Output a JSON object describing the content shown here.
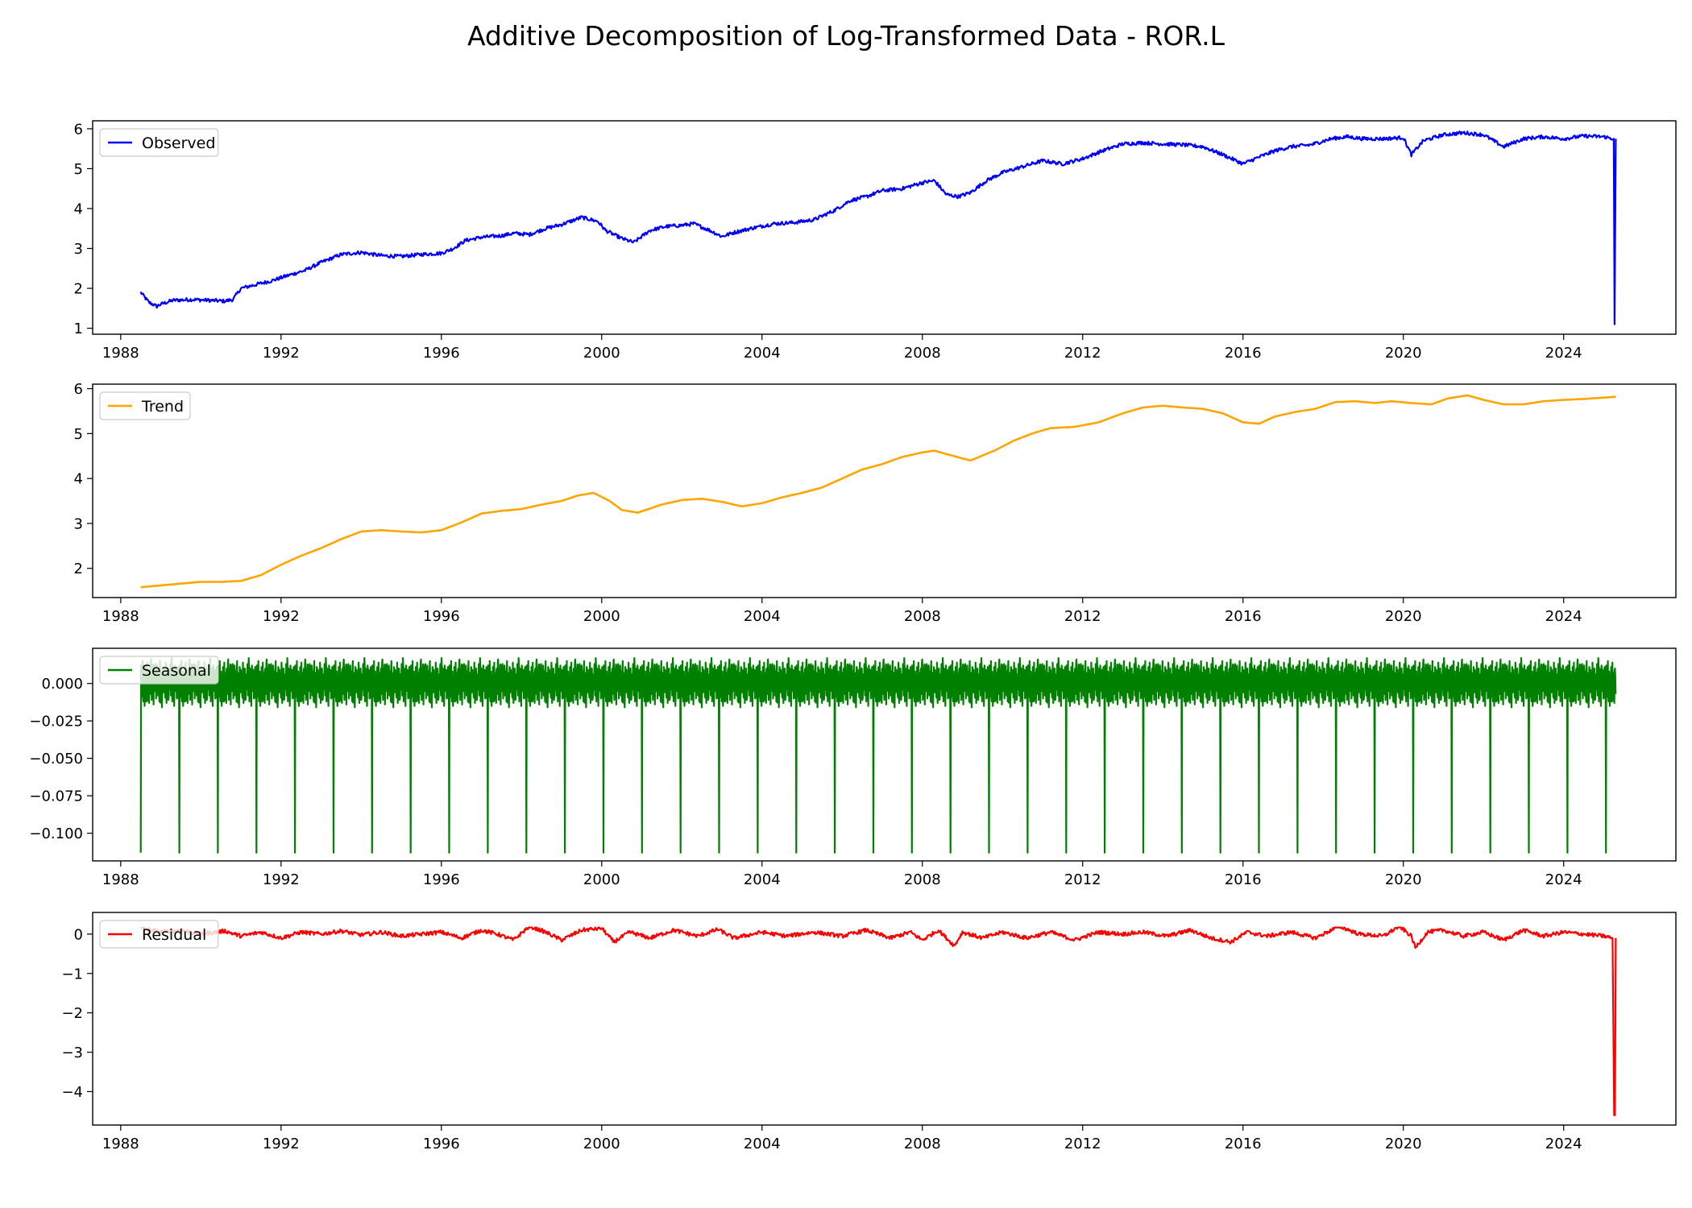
{
  "chart_data": [
    {
      "type": "line",
      "panel": "observed",
      "title": "Additive Decomposition of Log-Transformed Data - ROR.L",
      "color": "#0000ff",
      "series": [
        {
          "name": "Observed",
          "x": [
            1988.5,
            1988.7,
            1988.9,
            1989.0,
            1989.3,
            1989.8,
            1990.2,
            1990.6,
            1990.8,
            1991.0,
            1991.4,
            1991.8,
            1992.1,
            1992.6,
            1993.0,
            1993.5,
            1994.0,
            1994.5,
            1995.0,
            1995.5,
            1996.0,
            1996.3,
            1996.6,
            1997.0,
            1997.5,
            1997.8,
            1998.2,
            1998.6,
            1999.0,
            1999.5,
            1999.9,
            2000.1,
            2000.5,
            2000.8,
            2001.2,
            2001.6,
            2002.0,
            2002.3,
            2002.7,
            2003.0,
            2003.3,
            2003.8,
            2004.3,
            2004.8,
            2005.3,
            2005.8,
            2006.2,
            2006.6,
            2007.0,
            2007.5,
            2008.0,
            2008.3,
            2008.6,
            2008.9,
            2009.2,
            2009.6,
            2010.0,
            2010.5,
            2011.0,
            2011.5,
            2012.0,
            2012.5,
            2013.0,
            2013.5,
            2014.0,
            2014.5,
            2015.0,
            2015.5,
            2016.0,
            2016.3,
            2016.8,
            2017.2,
            2017.7,
            2018.2,
            2018.6,
            2019.0,
            2019.5,
            2020.0,
            2020.2,
            2020.5,
            2021.0,
            2021.5,
            2022.0,
            2022.5,
            2023.0,
            2023.5,
            2024.0,
            2024.5,
            2025.0,
            2025.25,
            2025.27,
            2025.3
          ],
          "values": [
            1.9,
            1.65,
            1.55,
            1.6,
            1.7,
            1.72,
            1.7,
            1.68,
            1.72,
            2.0,
            2.1,
            2.2,
            2.3,
            2.45,
            2.65,
            2.85,
            2.9,
            2.82,
            2.8,
            2.85,
            2.88,
            3.0,
            3.2,
            3.28,
            3.32,
            3.38,
            3.35,
            3.5,
            3.6,
            3.78,
            3.68,
            3.45,
            3.25,
            3.15,
            3.45,
            3.55,
            3.58,
            3.62,
            3.45,
            3.3,
            3.4,
            3.52,
            3.62,
            3.65,
            3.72,
            3.95,
            4.2,
            4.3,
            4.45,
            4.5,
            4.65,
            4.7,
            4.35,
            4.3,
            4.4,
            4.7,
            4.9,
            5.05,
            5.2,
            5.12,
            5.25,
            5.45,
            5.62,
            5.65,
            5.62,
            5.6,
            5.55,
            5.35,
            5.12,
            5.25,
            5.45,
            5.55,
            5.6,
            5.75,
            5.8,
            5.75,
            5.75,
            5.78,
            5.35,
            5.7,
            5.85,
            5.9,
            5.85,
            5.55,
            5.75,
            5.8,
            5.75,
            5.82,
            5.8,
            5.75,
            1.1,
            5.75
          ]
        }
      ],
      "xlim": [
        1987.3,
        2026.8
      ],
      "ylim": [
        0.85,
        6.2
      ],
      "yticks": [
        1,
        2,
        3,
        4,
        5,
        6
      ],
      "ytick_labels": [
        "1",
        "2",
        "3",
        "4",
        "5",
        "6"
      ],
      "xticks": [
        1988,
        1992,
        1996,
        2000,
        2004,
        2008,
        2012,
        2016,
        2020,
        2024
      ],
      "xtick_labels": [
        "1988",
        "1992",
        "1996",
        "2000",
        "2004",
        "2008",
        "2012",
        "2016",
        "2020",
        "2024"
      ],
      "legend": "top-left",
      "grid": false
    },
    {
      "type": "line",
      "panel": "trend",
      "color": "#ffa500",
      "series": [
        {
          "name": "Trend",
          "x": [
            1988.5,
            1989.0,
            1989.5,
            1990.0,
            1990.5,
            1991.0,
            1991.5,
            1992.0,
            1992.5,
            1993.0,
            1993.5,
            1994.0,
            1994.5,
            1995.0,
            1995.5,
            1996.0,
            1996.5,
            1997.0,
            1997.5,
            1998.0,
            1998.5,
            1999.0,
            1999.4,
            1999.8,
            2000.2,
            2000.5,
            2000.9,
            2001.5,
            2002.0,
            2002.5,
            2003.0,
            2003.5,
            2004.0,
            2004.5,
            2005.0,
            2005.5,
            2006.0,
            2006.5,
            2007.0,
            2007.5,
            2008.0,
            2008.3,
            2008.7,
            2009.2,
            2009.8,
            2010.3,
            2010.8,
            2011.2,
            2011.8,
            2012.4,
            2013.0,
            2013.5,
            2014.0,
            2014.5,
            2015.0,
            2015.5,
            2016.0,
            2016.4,
            2016.8,
            2017.3,
            2017.8,
            2018.3,
            2018.8,
            2019.3,
            2019.7,
            2020.2,
            2020.7,
            2021.1,
            2021.6,
            2022.0,
            2022.5,
            2023.0,
            2023.5,
            2024.0,
            2024.5,
            2025.0,
            2025.3
          ],
          "values": [
            1.58,
            1.62,
            1.66,
            1.7,
            1.7,
            1.72,
            1.85,
            2.08,
            2.28,
            2.45,
            2.65,
            2.82,
            2.85,
            2.82,
            2.8,
            2.85,
            3.02,
            3.22,
            3.28,
            3.32,
            3.42,
            3.5,
            3.62,
            3.68,
            3.5,
            3.3,
            3.24,
            3.42,
            3.52,
            3.55,
            3.48,
            3.38,
            3.45,
            3.58,
            3.68,
            3.8,
            4.0,
            4.2,
            4.32,
            4.48,
            4.58,
            4.62,
            4.52,
            4.4,
            4.62,
            4.85,
            5.02,
            5.12,
            5.15,
            5.25,
            5.45,
            5.58,
            5.62,
            5.58,
            5.55,
            5.45,
            5.25,
            5.22,
            5.38,
            5.48,
            5.55,
            5.7,
            5.72,
            5.68,
            5.72,
            5.68,
            5.65,
            5.78,
            5.85,
            5.75,
            5.65,
            5.65,
            5.72,
            5.75,
            5.77,
            5.8,
            5.82
          ]
        }
      ],
      "xlim": [
        1987.3,
        2026.8
      ],
      "ylim": [
        1.35,
        6.1
      ],
      "yticks": [
        2,
        3,
        4,
        5,
        6
      ],
      "ytick_labels": [
        "2",
        "3",
        "4",
        "5",
        "6"
      ],
      "xticks": [
        1988,
        1992,
        1996,
        2000,
        2004,
        2008,
        2012,
        2016,
        2020,
        2024
      ],
      "xtick_labels": [
        "1988",
        "1992",
        "1996",
        "2000",
        "2004",
        "2008",
        "2012",
        "2016",
        "2020",
        "2024"
      ],
      "legend": "top-left",
      "grid": false
    },
    {
      "type": "line",
      "panel": "seasonal",
      "color": "#008000",
      "series": [
        {
          "name": "Seasonal",
          "period_years": 0.962,
          "start": 1988.5,
          "end": 2025.3,
          "spike_min": -0.113,
          "range_max": 0.017,
          "range_min": -0.016,
          "cycle_values": [
            0.0,
            0.012,
            -0.006,
            0.015,
            -0.012,
            0.008,
            -0.015,
            0.005,
            0.011,
            -0.009,
            0.014,
            -0.004,
            0.007,
            -0.013,
            0.01,
            -0.007,
            0.016,
            -0.011,
            0.003,
            0.009,
            -0.014,
            0.006,
            -0.005,
            0.013,
            -0.01,
            0.004,
            0.012,
            -0.008,
            0.008,
            -0.012,
            0.015,
            -0.003,
            0.007,
            -0.016,
            0.011,
            -0.006,
            0.009,
            0.002,
            -0.009,
            0.014,
            -0.013,
            0.005,
            0.01,
            -0.011,
            0.006,
            -0.004,
            0.013,
            -0.008,
            0.017,
            -0.012,
            0.004,
            0.008,
            -0.015,
            0.012,
            -0.005,
            0.009,
            -0.01,
            0.003,
            0.011,
            -0.007
          ]
        }
      ],
      "xlim": [
        1987.3,
        2026.8
      ],
      "ylim": [
        -0.1185,
        0.0235
      ],
      "yticks": [
        0.0,
        -0.025,
        -0.05,
        -0.075,
        -0.1
      ],
      "ytick_labels": [
        "0.000",
        "−0.025",
        "−0.050",
        "−0.075",
        "−0.100"
      ],
      "xticks": [
        1988,
        1992,
        1996,
        2000,
        2004,
        2008,
        2012,
        2016,
        2020,
        2024
      ],
      "xtick_labels": [
        "1988",
        "1992",
        "1996",
        "2000",
        "2004",
        "2008",
        "2012",
        "2016",
        "2020",
        "2024"
      ],
      "legend": "top-left",
      "grid": false
    },
    {
      "type": "line",
      "panel": "residual",
      "color": "#ff0000",
      "series": [
        {
          "name": "Residual",
          "x": [
            1988.5,
            1989.0,
            1989.5,
            1990.0,
            1990.6,
            1991.0,
            1991.5,
            1992.0,
            1992.5,
            1993.0,
            1993.5,
            1994.0,
            1994.5,
            1995.0,
            1995.5,
            1996.0,
            1996.5,
            1997.0,
            1997.4,
            1997.8,
            1998.2,
            1998.6,
            1999.0,
            1999.5,
            2000.0,
            2000.3,
            2000.7,
            2001.2,
            2001.8,
            2002.4,
            2002.9,
            2003.3,
            2004.0,
            2004.6,
            2005.3,
            2006.0,
            2006.6,
            2007.2,
            2007.7,
            2008.0,
            2008.4,
            2008.8,
            2009.0,
            2009.5,
            2010.0,
            2010.6,
            2011.2,
            2011.8,
            2012.4,
            2013.0,
            2013.5,
            2014.1,
            2014.7,
            2015.2,
            2015.7,
            2016.1,
            2016.6,
            2017.2,
            2017.8,
            2018.4,
            2018.9,
            2019.5,
            2019.9,
            2020.2,
            2020.3,
            2020.6,
            2021.0,
            2021.5,
            2022.0,
            2022.5,
            2023.0,
            2023.5,
            2024.0,
            2024.5,
            2025.0,
            2025.22,
            2025.26,
            2025.28,
            2025.3
          ],
          "values": [
            0.15,
            0.05,
            0.1,
            0.0,
            0.08,
            -0.05,
            0.05,
            -0.1,
            0.05,
            0.0,
            0.08,
            -0.02,
            0.05,
            -0.05,
            0.0,
            0.05,
            -0.1,
            0.1,
            0.0,
            -0.15,
            0.2,
            0.05,
            -0.15,
            0.1,
            0.15,
            -0.2,
            0.05,
            -0.1,
            0.1,
            -0.05,
            0.12,
            -0.1,
            0.05,
            -0.05,
            0.05,
            -0.05,
            0.1,
            -0.1,
            0.05,
            -0.15,
            0.1,
            -0.3,
            0.05,
            -0.1,
            0.05,
            -0.1,
            0.05,
            -0.15,
            0.05,
            0.0,
            0.05,
            -0.05,
            0.1,
            -0.1,
            -0.2,
            0.05,
            -0.05,
            0.05,
            -0.1,
            0.2,
            0.0,
            -0.05,
            0.2,
            -0.05,
            -0.35,
            0.05,
            0.1,
            -0.05,
            0.05,
            -0.15,
            0.1,
            -0.05,
            0.05,
            0.0,
            -0.05,
            -0.1,
            -4.6,
            -4.6,
            -0.1
          ],
          "upper_envelope": 0.17
        }
      ],
      "xlim": [
        1987.3,
        2026.8
      ],
      "ylim": [
        -4.85,
        0.55
      ],
      "yticks": [
        0,
        -1,
        -2,
        -3,
        -4
      ],
      "ytick_labels": [
        "0",
        "−1",
        "−2",
        "−3",
        "−4"
      ],
      "xticks": [
        1988,
        1992,
        1996,
        2000,
        2004,
        2008,
        2012,
        2016,
        2020,
        2024
      ],
      "xtick_labels": [
        "1988",
        "1992",
        "1996",
        "2000",
        "2004",
        "2008",
        "2012",
        "2016",
        "2020",
        "2024"
      ],
      "legend": "top-left",
      "grid": false
    }
  ]
}
